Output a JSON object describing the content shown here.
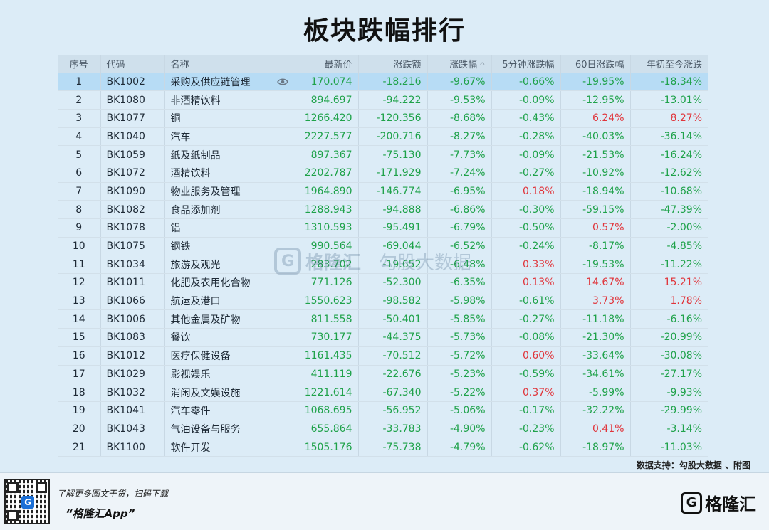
{
  "title": "板块跌幅排行",
  "columns": [
    "序号",
    "代码",
    "名称",
    "最新价",
    "涨跌额",
    "涨跌幅",
    "5分钟涨跌幅",
    "60日涨跌幅",
    "年初至今涨跌"
  ],
  "sort_indicator": "^",
  "selected_row": 0,
  "rows": [
    {
      "idx": "1",
      "code": "BK1002",
      "name": "采购及供应链管理",
      "price": "170.074",
      "chg": "-18.216",
      "pct": "-9.67%",
      "m5": "-0.66%",
      "d60": "-19.95%",
      "ytd": "-18.34%"
    },
    {
      "idx": "2",
      "code": "BK1080",
      "name": "非酒精饮料",
      "price": "894.697",
      "chg": "-94.222",
      "pct": "-9.53%",
      "m5": "-0.09%",
      "d60": "-12.95%",
      "ytd": "-13.01%"
    },
    {
      "idx": "3",
      "code": "BK1077",
      "name": "铜",
      "price": "1266.420",
      "chg": "-120.356",
      "pct": "-8.68%",
      "m5": "-0.43%",
      "d60": "6.24%",
      "ytd": "8.27%"
    },
    {
      "idx": "4",
      "code": "BK1040",
      "name": "汽车",
      "price": "2227.577",
      "chg": "-200.716",
      "pct": "-8.27%",
      "m5": "-0.28%",
      "d60": "-40.03%",
      "ytd": "-36.14%"
    },
    {
      "idx": "5",
      "code": "BK1059",
      "name": "纸及纸制品",
      "price": "897.367",
      "chg": "-75.130",
      "pct": "-7.73%",
      "m5": "-0.09%",
      "d60": "-21.53%",
      "ytd": "-16.24%"
    },
    {
      "idx": "6",
      "code": "BK1072",
      "name": "酒精饮料",
      "price": "2202.787",
      "chg": "-171.929",
      "pct": "-7.24%",
      "m5": "-0.27%",
      "d60": "-10.92%",
      "ytd": "-12.62%"
    },
    {
      "idx": "7",
      "code": "BK1090",
      "name": "物业服务及管理",
      "price": "1964.890",
      "chg": "-146.774",
      "pct": "-6.95%",
      "m5": "0.18%",
      "d60": "-18.94%",
      "ytd": "-10.68%"
    },
    {
      "idx": "8",
      "code": "BK1082",
      "name": "食品添加剂",
      "price": "1288.943",
      "chg": "-94.888",
      "pct": "-6.86%",
      "m5": "-0.30%",
      "d60": "-59.15%",
      "ytd": "-47.39%"
    },
    {
      "idx": "9",
      "code": "BK1078",
      "name": "铝",
      "price": "1310.593",
      "chg": "-95.491",
      "pct": "-6.79%",
      "m5": "-0.50%",
      "d60": "0.57%",
      "ytd": "-2.00%"
    },
    {
      "idx": "10",
      "code": "BK1075",
      "name": "钢铁",
      "price": "990.564",
      "chg": "-69.044",
      "pct": "-6.52%",
      "m5": "-0.24%",
      "d60": "-8.17%",
      "ytd": "-4.85%"
    },
    {
      "idx": "11",
      "code": "BK1034",
      "name": "旅游及观光",
      "price": "283.702",
      "chg": "-19.652",
      "pct": "-6.48%",
      "m5": "0.33%",
      "d60": "-19.53%",
      "ytd": "-11.22%"
    },
    {
      "idx": "12",
      "code": "BK1011",
      "name": "化肥及农用化合物",
      "price": "771.126",
      "chg": "-52.300",
      "pct": "-6.35%",
      "m5": "0.13%",
      "d60": "14.67%",
      "ytd": "15.21%"
    },
    {
      "idx": "13",
      "code": "BK1066",
      "name": "航运及港口",
      "price": "1550.623",
      "chg": "-98.582",
      "pct": "-5.98%",
      "m5": "-0.61%",
      "d60": "3.73%",
      "ytd": "1.78%"
    },
    {
      "idx": "14",
      "code": "BK1006",
      "name": "其他金属及矿物",
      "price": "811.558",
      "chg": "-50.401",
      "pct": "-5.85%",
      "m5": "-0.27%",
      "d60": "-11.18%",
      "ytd": "-6.16%"
    },
    {
      "idx": "15",
      "code": "BK1083",
      "name": "餐饮",
      "price": "730.177",
      "chg": "-44.375",
      "pct": "-5.73%",
      "m5": "-0.08%",
      "d60": "-21.30%",
      "ytd": "-20.99%"
    },
    {
      "idx": "16",
      "code": "BK1012",
      "name": "医疗保健设备",
      "price": "1161.435",
      "chg": "-70.512",
      "pct": "-5.72%",
      "m5": "0.60%",
      "d60": "-33.64%",
      "ytd": "-30.08%"
    },
    {
      "idx": "17",
      "code": "BK1029",
      "name": "影视娱乐",
      "price": "411.119",
      "chg": "-22.676",
      "pct": "-5.23%",
      "m5": "-0.59%",
      "d60": "-34.61%",
      "ytd": "-27.17%"
    },
    {
      "idx": "18",
      "code": "BK1032",
      "name": "消闲及文娱设施",
      "price": "1221.614",
      "chg": "-67.340",
      "pct": "-5.22%",
      "m5": "0.37%",
      "d60": "-5.99%",
      "ytd": "-9.93%"
    },
    {
      "idx": "19",
      "code": "BK1041",
      "name": "汽车零件",
      "price": "1068.695",
      "chg": "-56.952",
      "pct": "-5.06%",
      "m5": "-0.17%",
      "d60": "-32.22%",
      "ytd": "-29.99%"
    },
    {
      "idx": "20",
      "code": "BK1043",
      "name": "气油设备与服务",
      "price": "655.864",
      "chg": "-33.783",
      "pct": "-4.90%",
      "m5": "-0.23%",
      "d60": "0.41%",
      "ytd": "-3.14%"
    },
    {
      "idx": "21",
      "code": "BK1100",
      "name": "软件开发",
      "price": "1505.176",
      "chg": "-75.738",
      "pct": "-4.79%",
      "m5": "-0.62%",
      "d60": "-18.97%",
      "ytd": "-11.03%"
    }
  ],
  "source_note": "数据支持：勾股大数据 、附图",
  "watermark": {
    "brand": "格隆汇",
    "data": "勾股大数据"
  },
  "footer": {
    "tip": "了解更多图文干货，扫码下载",
    "app": "“格隆汇App”",
    "brand": "格隆汇",
    "qr_logo": "G"
  },
  "colors": {
    "up": "#e0353b",
    "down": "#1fa24a",
    "selected": "#b7dcf5"
  },
  "icons": {
    "row_action": "eye-icon",
    "sort": "sort-up-icon"
  }
}
